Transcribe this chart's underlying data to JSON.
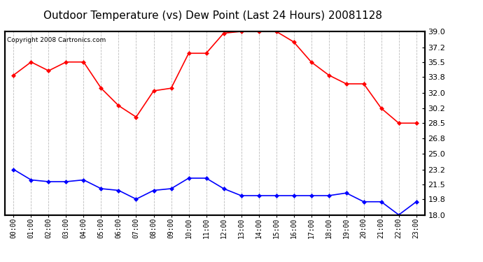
{
  "title": "Outdoor Temperature (vs) Dew Point (Last 24 Hours) 20081128",
  "copyright": "Copyright 2008 Cartronics.com",
  "hours": [
    "00:00",
    "01:00",
    "02:00",
    "03:00",
    "04:00",
    "05:00",
    "06:00",
    "07:00",
    "08:00",
    "09:00",
    "10:00",
    "11:00",
    "12:00",
    "13:00",
    "14:00",
    "15:00",
    "16:00",
    "17:00",
    "18:00",
    "19:00",
    "20:00",
    "21:00",
    "22:00",
    "23:00"
  ],
  "temp": [
    34.0,
    35.5,
    34.5,
    35.5,
    35.5,
    32.5,
    30.5,
    29.2,
    32.2,
    32.5,
    36.5,
    36.5,
    38.8,
    39.0,
    39.0,
    39.0,
    37.8,
    35.5,
    34.0,
    33.0,
    33.0,
    30.2,
    28.5,
    28.5
  ],
  "dew": [
    23.2,
    22.0,
    21.8,
    21.8,
    22.0,
    21.0,
    20.8,
    19.8,
    20.8,
    21.0,
    22.2,
    22.2,
    21.0,
    20.2,
    20.2,
    20.2,
    20.2,
    20.2,
    20.2,
    20.5,
    19.5,
    19.5,
    18.0,
    19.5
  ],
  "temp_color": "red",
  "dew_color": "blue",
  "ylim": [
    18.0,
    39.0
  ],
  "yticks": [
    18.0,
    19.8,
    21.5,
    23.2,
    25.0,
    26.8,
    28.5,
    30.2,
    32.0,
    33.8,
    35.5,
    37.2,
    39.0
  ],
  "bg_color": "#ffffff",
  "grid_color": "#bbbbbb",
  "title_fontsize": 11,
  "copyright_fontsize": 6.5,
  "marker": "D",
  "markersize": 3,
  "linewidth": 1.2
}
